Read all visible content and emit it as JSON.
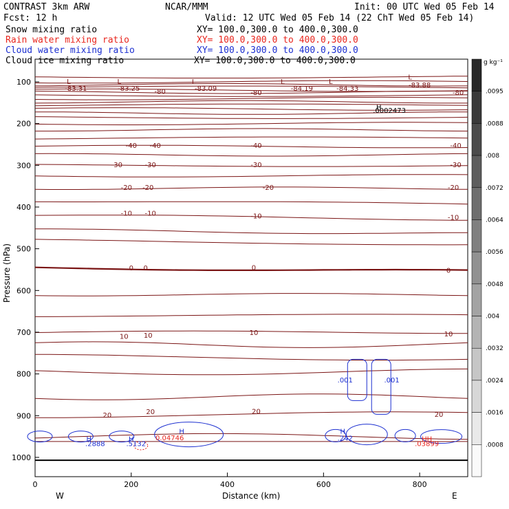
{
  "header": {
    "title": "CONTRAST  3km ARW",
    "org": "NCAR/MMM",
    "init": "Init: 00 UTC Wed 05 Feb 14",
    "fcst": "Fcst:   12 h",
    "valid": "Valid: 12 UTC Wed 05 Feb 14 (22 ChT Wed 05 Feb 14)"
  },
  "legend": [
    {
      "label": "Snow mixing ratio",
      "xy": "XY= 100.0,300.0 to 400.0,300.0",
      "color": "#000000"
    },
    {
      "label": "Rain water mixing ratio",
      "xy": "XY= 100.0,300.0 to 400.0,300.0",
      "color": "#e8261e"
    },
    {
      "label": "Cloud water mixing ratio",
      "xy": "XY= 100.0,300.0 to 400.0,300.0",
      "color": "#1c2fd0"
    },
    {
      "label": "Cloud ice mixing ratio",
      "xy": "XY= 100.0,300.0 to 400.0,300.0",
      "color": "#000000"
    }
  ],
  "chart_data": {
    "type": "contour",
    "xlabel": "Distance (km)",
    "ylabel": "Pressure (hPa)",
    "xlim": [
      0,
      900
    ],
    "ylim": [
      1050,
      50
    ],
    "x_ticks": [
      "0",
      "200",
      "400",
      "600",
      "800"
    ],
    "y_ticks": [
      "100",
      "200",
      "300",
      "400",
      "500",
      "600",
      "700",
      "800",
      "900",
      "1000"
    ],
    "x_end_labels": {
      "left": "W",
      "right": "E"
    },
    "colorbar": {
      "units": "g kg⁻¹",
      "levels": [
        ".0095",
        ".0088",
        ".008",
        ".0072",
        ".0064",
        ".0056",
        ".0048",
        ".004",
        ".0032",
        ".0024",
        ".0016",
        ".0008"
      ]
    },
    "temperature_contours": {
      "color": "#7a1414",
      "labels": [
        {
          "text": "-83.31",
          "x": 85,
          "p": 115
        },
        {
          "text": "-83.25",
          "x": 195,
          "p": 115
        },
        {
          "text": "-80",
          "x": 260,
          "p": 122
        },
        {
          "text": "-83.09",
          "x": 355,
          "p": 115
        },
        {
          "text": "-80",
          "x": 460,
          "p": 125
        },
        {
          "text": "-84.19",
          "x": 555,
          "p": 115
        },
        {
          "text": "-84.33",
          "x": 650,
          "p": 115
        },
        {
          "text": "-83.88",
          "x": 800,
          "p": 107
        },
        {
          "text": "-80",
          "x": 880,
          "p": 125
        },
        {
          "text": "-40",
          "x": 200,
          "p": 252
        },
        {
          "text": "-40",
          "x": 250,
          "p": 252
        },
        {
          "text": "-40",
          "x": 460,
          "p": 252
        },
        {
          "text": "-40",
          "x": 875,
          "p": 252
        },
        {
          "text": "-30",
          "x": 170,
          "p": 298
        },
        {
          "text": "-30",
          "x": 240,
          "p": 298
        },
        {
          "text": "-30",
          "x": 460,
          "p": 298
        },
        {
          "text": "-30",
          "x": 875,
          "p": 298
        },
        {
          "text": "-20",
          "x": 190,
          "p": 352
        },
        {
          "text": "-20",
          "x": 235,
          "p": 352
        },
        {
          "text": "-20",
          "x": 485,
          "p": 352
        },
        {
          "text": "-20",
          "x": 870,
          "p": 352
        },
        {
          "text": "-10",
          "x": 190,
          "p": 414
        },
        {
          "text": "-10",
          "x": 240,
          "p": 414
        },
        {
          "text": "-10",
          "x": 460,
          "p": 421
        },
        {
          "text": "-10",
          "x": 870,
          "p": 424
        },
        {
          "text": "0",
          "x": 200,
          "p": 545
        },
        {
          "text": "0",
          "x": 230,
          "p": 545
        },
        {
          "text": "0",
          "x": 455,
          "p": 544
        },
        {
          "text": "0",
          "x": 860,
          "p": 551
        },
        {
          "text": "10",
          "x": 185,
          "p": 709
        },
        {
          "text": "10",
          "x": 235,
          "p": 707
        },
        {
          "text": "10",
          "x": 455,
          "p": 700
        },
        {
          "text": "10",
          "x": 860,
          "p": 703
        },
        {
          "text": "20",
          "x": 150,
          "p": 898
        },
        {
          "text": "20",
          "x": 240,
          "p": 890
        },
        {
          "text": "20",
          "x": 460,
          "p": 889
        },
        {
          "text": "20",
          "x": 840,
          "p": 896
        }
      ],
      "extrema": [
        {
          "text": "H",
          "x": 715,
          "p": 160
        },
        {
          "text": ".0002473",
          "x": 737,
          "p": 168
        }
      ]
    },
    "cloud_water": {
      "color": "#1c2fd0",
      "labels": [
        {
          "text": ".001",
          "x": 645,
          "p": 814
        },
        {
          "text": ".001",
          "x": 742,
          "p": 814
        },
        {
          "text": "H",
          "x": 112,
          "p": 955
        },
        {
          "text": ".2888",
          "x": 125,
          "p": 966
        },
        {
          "text": "H",
          "x": 200,
          "p": 955
        },
        {
          "text": ".5132",
          "x": 210,
          "p": 966
        },
        {
          "text": "H",
          "x": 305,
          "p": 937
        },
        {
          "text": "H",
          "x": 640,
          "p": 937
        },
        {
          "text": ".242",
          "x": 645,
          "p": 953
        }
      ]
    },
    "rain_water": {
      "color": "#e8261e",
      "labels": [
        {
          "text": "0.04746",
          "x": 280,
          "p": 952
        },
        {
          "text": "HH",
          "x": 815,
          "p": 955
        },
        {
          "text": ".03899",
          "x": 815,
          "p": 966
        }
      ]
    },
    "lows": [
      {
        "text": "L",
        "x": 70,
        "p": 98
      },
      {
        "text": "L",
        "x": 175,
        "p": 98
      },
      {
        "text": "L",
        "x": 330,
        "p": 98
      },
      {
        "text": "L",
        "x": 515,
        "p": 98
      },
      {
        "text": "L",
        "x": 615,
        "p": 98
      },
      {
        "text": "L",
        "x": 780,
        "p": 88
      }
    ],
    "ground_pressure": 1007
  }
}
